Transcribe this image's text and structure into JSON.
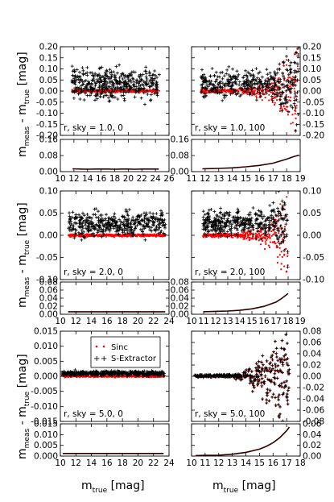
{
  "figure": {
    "ylabel_main": "m",
    "ylabel_sub1": "meas",
    "ylabel_mid": " - m",
    "ylabel_sub2": "true",
    "ylabel_unit": " [mag]",
    "xlabel_main": "m",
    "xlabel_sub": "true",
    "xlabel_unit": " [mag]"
  },
  "colors": {
    "sinc": "#ff0000",
    "sextractor": "#000000",
    "rms_line": "#300000"
  },
  "legend": {
    "sinc": "Sinc",
    "sextractor": "S-Extractor"
  },
  "chart_data": [
    {
      "type": "scatter",
      "panel": "row1-left-residual",
      "annotation": "r, sky = 1.0, 0",
      "xlim": [
        10,
        26
      ],
      "ylim": [
        -0.2,
        0.2
      ],
      "xticks": [
        "10",
        "12",
        "14",
        "16",
        "18",
        "20",
        "22",
        "24",
        "26"
      ],
      "yticks": [
        "-0.20",
        "-0.15",
        "-0.10",
        "-0.05",
        "0.00",
        "0.05",
        "0.10",
        "0.15",
        "0.20"
      ],
      "ytick_side": "left",
      "series": [
        {
          "marker": "plus",
          "x_range": [
            11.7,
            24.6
          ],
          "center": 0.033,
          "spread": 0.032,
          "growth": 0.0,
          "count": 430
        },
        {
          "marker": "dot",
          "x_range": [
            11.7,
            24.6
          ],
          "center": 0.0,
          "spread": 0.003,
          "growth": 0.0,
          "count": 430
        }
      ]
    },
    {
      "type": "line",
      "panel": "row1-left-rms",
      "xlim": [
        10,
        26
      ],
      "ylim": [
        0,
        0.16
      ],
      "xticks": [
        "10",
        "12",
        "14",
        "16",
        "18",
        "20",
        "22",
        "24",
        "26"
      ],
      "yticks": [
        "0.00",
        "0.08",
        "0.16"
      ],
      "ytick_side": "left",
      "x": [
        11.8,
        13,
        14,
        15,
        16,
        17,
        18,
        19,
        20,
        21,
        22,
        23,
        24.5
      ],
      "y": [
        0.014,
        0.013,
        0.012,
        0.013,
        0.013,
        0.013,
        0.012,
        0.013,
        0.013,
        0.012,
        0.013,
        0.013,
        0.013
      ]
    },
    {
      "type": "scatter",
      "panel": "row1-right-residual",
      "annotation": "r, sky = 1.0, 100",
      "xlim": [
        11,
        19
      ],
      "ylim": [
        -0.2,
        0.2
      ],
      "xticks": [
        "11",
        "12",
        "13",
        "14",
        "15",
        "16",
        "17",
        "18",
        "19"
      ],
      "yticks": [
        "-0.20",
        "-0.15",
        "-0.10",
        "-0.05",
        "0.00",
        "0.05",
        "0.10",
        "0.15",
        "0.20"
      ],
      "ytick_side": "right",
      "series": [
        {
          "marker": "plus",
          "x_range": [
            11.7,
            18.9
          ],
          "center": 0.033,
          "spread": 0.028,
          "growth": 0.12,
          "count": 400
        },
        {
          "marker": "dot",
          "x_range": [
            11.7,
            18.9
          ],
          "center": 0.0,
          "spread": 0.005,
          "growth": 0.13,
          "count": 400
        }
      ]
    },
    {
      "type": "line",
      "panel": "row1-right-rms",
      "xlim": [
        11,
        19
      ],
      "ylim": [
        0,
        0.16
      ],
      "xticks": [
        "11",
        "12",
        "13",
        "14",
        "15",
        "16",
        "17",
        "18",
        "19"
      ],
      "yticks": [
        "0.00",
        "0.08",
        "0.16"
      ],
      "ytick_side": "left",
      "x": [
        11.8,
        13,
        14,
        15,
        16,
        17,
        17.5,
        18,
        18.5,
        18.9
      ],
      "y": [
        0.014,
        0.016,
        0.019,
        0.024,
        0.031,
        0.042,
        0.052,
        0.062,
        0.074,
        0.082
      ]
    },
    {
      "type": "scatter",
      "panel": "row2-left-residual",
      "annotation": "r, sky = 2.0, 0",
      "xlim": [
        10,
        24
      ],
      "ylim": [
        -0.1,
        0.1
      ],
      "xticks": [
        "10",
        "12",
        "14",
        "16",
        "18",
        "20",
        "22",
        "24"
      ],
      "yticks": [
        "-0.10",
        "-0.05",
        "0.00",
        "0.05",
        "0.10"
      ],
      "ytick_side": "left",
      "series": [
        {
          "marker": "plus",
          "x_range": [
            11.0,
            23.6
          ],
          "center": 0.027,
          "spread": 0.014,
          "growth": 0.0,
          "count": 430
        },
        {
          "marker": "dot",
          "x_range": [
            11.0,
            23.6
          ],
          "center": 0.0,
          "spread": 0.0015,
          "growth": 0.0,
          "count": 430
        }
      ]
    },
    {
      "type": "line",
      "panel": "row2-left-rms",
      "xlim": [
        10,
        24
      ],
      "ylim": [
        0,
        0.09
      ],
      "xticks": [
        "10",
        "12",
        "14",
        "16",
        "18",
        "20",
        "22",
        "24"
      ],
      "yticks": [
        "0.00",
        "0.02",
        "0.04",
        "0.06",
        "0.08"
      ],
      "ytick_side": "left",
      "x": [
        11.0,
        13,
        15,
        17,
        19,
        21,
        23.5
      ],
      "y": [
        0.007,
        0.007,
        0.007,
        0.007,
        0.007,
        0.007,
        0.007
      ]
    },
    {
      "type": "scatter",
      "panel": "row2-right-residual",
      "annotation": "r, sky = 2.0, 100",
      "xlim": [
        10,
        19
      ],
      "ylim": [
        -0.1,
        0.1
      ],
      "xticks": [
        "10",
        "11",
        "12",
        "13",
        "14",
        "15",
        "16",
        "17",
        "18",
        "19"
      ],
      "yticks": [
        "-0.10",
        "-0.05",
        "0.00",
        "0.05",
        "0.10"
      ],
      "ytick_side": "right",
      "series": [
        {
          "marker": "plus",
          "x_range": [
            10.9,
            18.0
          ],
          "center": 0.028,
          "spread": 0.012,
          "growth": 0.05,
          "count": 400
        },
        {
          "marker": "dot",
          "x_range": [
            10.9,
            18.0
          ],
          "center": 0.0,
          "spread": 0.002,
          "growth": 0.055,
          "count": 400
        }
      ]
    },
    {
      "type": "line",
      "panel": "row2-right-rms",
      "xlim": [
        10,
        19
      ],
      "ylim": [
        0,
        0.09
      ],
      "xticks": [
        "10",
        "11",
        "12",
        "13",
        "14",
        "15",
        "16",
        "17",
        "18",
        "19"
      ],
      "yticks": [
        "0.00",
        "0.02",
        "0.04",
        "0.06",
        "0.08"
      ],
      "ytick_side": "left",
      "x": [
        11.0,
        12,
        13,
        14,
        15,
        16,
        17,
        17.5,
        18.0
      ],
      "y": [
        0.007,
        0.008,
        0.009,
        0.011,
        0.015,
        0.022,
        0.034,
        0.045,
        0.058
      ]
    },
    {
      "type": "scatter",
      "panel": "row3-left-residual",
      "annotation": "r, sky = 5.0, 0",
      "xlim": [
        10,
        24
      ],
      "ylim": [
        -0.015,
        0.015
      ],
      "xticks": [
        "10",
        "12",
        "14",
        "16",
        "18",
        "20",
        "22",
        "24"
      ],
      "yticks": [
        "-0.015",
        "-0.010",
        "-0.005",
        "0.000",
        "0.005",
        "0.010",
        "0.015"
      ],
      "ytick_side": "left",
      "series": [
        {
          "marker": "plus",
          "x_range": [
            10.2,
            23.4
          ],
          "center": 0.001,
          "spread": 0.0004,
          "growth": 0.0,
          "count": 450
        },
        {
          "marker": "dot",
          "x_range": [
            10.2,
            23.4
          ],
          "center": 0.0,
          "spread": 0.00015,
          "growth": 0.0,
          "count": 450
        }
      ]
    },
    {
      "type": "line",
      "panel": "row3-left-rms",
      "xlim": [
        10,
        24
      ],
      "ylim": [
        0,
        0.015
      ],
      "xticks": [
        "10",
        "12",
        "14",
        "16",
        "18",
        "20",
        "22",
        "24"
      ],
      "yticks": [
        "0.000",
        "0.005",
        "0.010",
        "0.015"
      ],
      "ytick_side": "left",
      "x": [
        10.3,
        12,
        14,
        16,
        18,
        20,
        23.3
      ],
      "y": [
        0.0012,
        0.0012,
        0.0012,
        0.0012,
        0.0012,
        0.0012,
        0.0012
      ]
    },
    {
      "type": "scatter",
      "panel": "row3-right-residual",
      "annotation": "r, sky = 5.0, 100",
      "xlim": [
        10,
        18
      ],
      "ylim": [
        -0.08,
        0.08
      ],
      "xticks": [
        "10",
        "11",
        "12",
        "13",
        "14",
        "15",
        "16",
        "17",
        "18"
      ],
      "yticks": [
        "-0.08",
        "-0.06",
        "-0.04",
        "-0.02",
        "0.00",
        "0.02",
        "0.04",
        "0.06",
        "0.08"
      ],
      "ytick_side": "right",
      "series": [
        {
          "marker": "plus",
          "x_range": [
            10.2,
            17.2
          ],
          "center": 0.001,
          "spread": 0.0008,
          "growth": 0.06,
          "count": 380,
          "paired": true
        },
        {
          "marker": "dot",
          "x_range": [
            10.2,
            17.2
          ],
          "center": 0.0,
          "spread": 0.0008,
          "growth": 0.06,
          "count": 380,
          "paired": true
        }
      ]
    },
    {
      "type": "line",
      "panel": "row3-right-rms",
      "xlim": [
        10,
        18
      ],
      "ylim": [
        0,
        0.07
      ],
      "xticks": [
        "10",
        "11",
        "12",
        "13",
        "14",
        "15",
        "16",
        "17",
        "18"
      ],
      "yticks": [
        "0.00",
        "0.02",
        "0.04",
        "0.06"
      ],
      "ytick_side": "right",
      "x": [
        10.3,
        11,
        12,
        13,
        14,
        15,
        15.5,
        16,
        16.5,
        17.0,
        17.2
      ],
      "y": [
        0.001,
        0.0015,
        0.002,
        0.004,
        0.008,
        0.015,
        0.021,
        0.029,
        0.04,
        0.055,
        0.063
      ]
    }
  ]
}
